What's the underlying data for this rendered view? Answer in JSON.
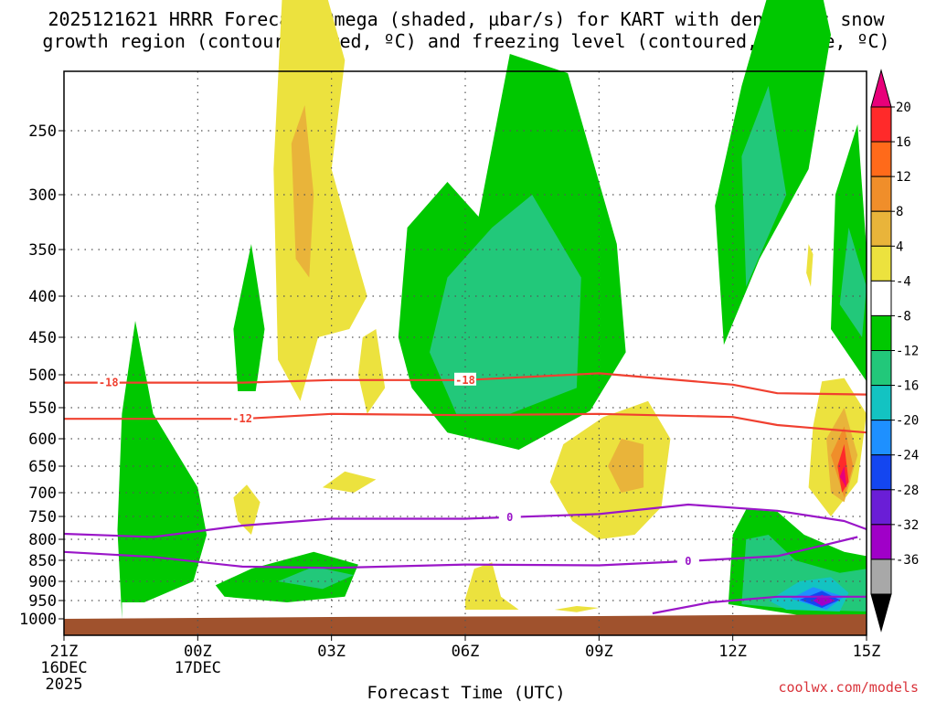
{
  "chart_data": {
    "type": "time-height contour",
    "title_line1": "2025121621 HRRR Forecast Omega (shaded, µbar/s) for KART with dendritic snow",
    "title_line2": "growth region (contoured, red, ºC) and freezing level (contoured, purple, ºC)",
    "xlabel": "Forecast Time (UTC)",
    "ylabel": "",
    "y_axis": {
      "units": "hPa",
      "range": [
        1000,
        200
      ],
      "ticks": [
        250,
        300,
        350,
        400,
        450,
        500,
        550,
        600,
        650,
        700,
        750,
        800,
        850,
        900,
        950,
        1000
      ]
    },
    "x_axis": {
      "range_hours": [
        0,
        18
      ],
      "ticks": [
        {
          "hour": 0,
          "label": "21Z",
          "sub1": "16DEC",
          "sub2": "2025"
        },
        {
          "hour": 3,
          "label": "00Z",
          "sub1": "17DEC",
          "sub2": ""
        },
        {
          "hour": 6,
          "label": "03Z",
          "sub1": "",
          "sub2": ""
        },
        {
          "hour": 9,
          "label": "06Z",
          "sub1": "",
          "sub2": ""
        },
        {
          "hour": 12,
          "label": "09Z",
          "sub1": "",
          "sub2": ""
        },
        {
          "hour": 15,
          "label": "12Z",
          "sub1": "",
          "sub2": ""
        },
        {
          "hour": 18,
          "label": "15Z",
          "sub1": "",
          "sub2": ""
        }
      ]
    },
    "colorbar": {
      "labels": [
        "20",
        "16",
        "12",
        "8",
        "4",
        "-4",
        "-8",
        "-12",
        "-16",
        "-20",
        "-24",
        "-28",
        "-32",
        "-36"
      ],
      "colors": [
        "#e8007a",
        "#ff2a2a",
        "#ff6a1a",
        "#f08e2a",
        "#e9b43a",
        "#ece23e",
        "#ffffff",
        "#00c800",
        "#22c87a",
        "#13c3c2",
        "#1e90ff",
        "#1446f0",
        "#6a1ed6",
        "#a000c8",
        "#a8a8a8",
        "#000000"
      ]
    },
    "dgz_contours": [
      {
        "label": "-18",
        "points": [
          [
            0,
            512
          ],
          [
            4,
            512
          ],
          [
            6,
            508
          ],
          [
            9,
            508
          ],
          [
            12,
            498
          ],
          [
            15,
            515
          ],
          [
            16,
            528
          ],
          [
            18,
            530
          ]
        ]
      },
      {
        "label": "-12",
        "points": [
          [
            0,
            568
          ],
          [
            4,
            568
          ],
          [
            6,
            560
          ],
          [
            9,
            562
          ],
          [
            12,
            560
          ],
          [
            15,
            565
          ],
          [
            16,
            578
          ],
          [
            18,
            590
          ]
        ]
      }
    ],
    "freezing_level_contours": [
      {
        "label": "0",
        "points": [
          [
            0,
            788
          ],
          [
            2,
            795
          ],
          [
            4,
            770
          ],
          [
            6,
            755
          ],
          [
            9,
            755
          ],
          [
            12,
            745
          ],
          [
            14,
            725
          ],
          [
            16,
            738
          ],
          [
            17.5,
            760
          ],
          [
            18,
            778
          ]
        ]
      },
      {
        "label": "0",
        "points": [
          [
            0,
            830
          ],
          [
            2,
            842
          ],
          [
            4,
            865
          ],
          [
            6,
            868
          ],
          [
            9,
            860
          ],
          [
            12,
            862
          ],
          [
            14,
            852
          ],
          [
            16,
            840
          ],
          [
            17,
            815
          ],
          [
            17.8,
            795
          ]
        ]
      },
      {
        "label": "",
        "points": [
          [
            13.2,
            985
          ],
          [
            14.5,
            955
          ],
          [
            16,
            940
          ],
          [
            18,
            940
          ]
        ]
      }
    ],
    "omega_regions": [
      {
        "level": "-4",
        "pts": [
          [
            1.3,
            1000
          ],
          [
            1.2,
            780
          ],
          [
            1.3,
            560
          ],
          [
            1.6,
            430
          ],
          [
            2.0,
            560
          ],
          [
            3.0,
            690
          ],
          [
            3.2,
            790
          ],
          [
            2.9,
            900
          ],
          [
            1.8,
            955
          ],
          [
            1.3,
            955
          ]
        ]
      },
      {
        "level": "-4",
        "pts": [
          [
            3.9,
            525
          ],
          [
            3.8,
            440
          ],
          [
            4.2,
            345
          ],
          [
            4.5,
            440
          ],
          [
            4.3,
            525
          ]
        ]
      },
      {
        "level": "-4",
        "pts": [
          [
            3.4,
            910
          ],
          [
            4.2,
            870
          ],
          [
            5.6,
            830
          ],
          [
            6.6,
            860
          ],
          [
            6.3,
            940
          ],
          [
            5.0,
            955
          ],
          [
            3.6,
            940
          ]
        ]
      },
      {
        "level": "-4",
        "pts": [
          [
            7.5,
            450
          ],
          [
            7.7,
            330
          ],
          [
            8.6,
            290
          ],
          [
            9.3,
            320
          ],
          [
            10.0,
            190
          ],
          [
            11.3,
            205
          ],
          [
            12.4,
            345
          ],
          [
            12.6,
            470
          ],
          [
            11.8,
            555
          ],
          [
            10.2,
            620
          ],
          [
            8.6,
            590
          ],
          [
            7.8,
            520
          ]
        ]
      },
      {
        "level": "-4",
        "pts": [
          [
            14.8,
            460
          ],
          [
            14.6,
            310
          ],
          [
            15.2,
            215
          ],
          [
            15.9,
            130
          ],
          [
            16.8,
            110
          ],
          [
            17.2,
            175
          ],
          [
            16.7,
            280
          ],
          [
            15.6,
            360
          ]
        ]
      },
      {
        "level": "-4",
        "pts": [
          [
            17.2,
            440
          ],
          [
            17.3,
            300
          ],
          [
            17.8,
            245
          ],
          [
            18.0,
            350
          ],
          [
            18.0,
            510
          ]
        ]
      },
      {
        "level": "-4",
        "pts": [
          [
            14.9,
            960
          ],
          [
            15.0,
            790
          ],
          [
            15.3,
            735
          ],
          [
            16.0,
            740
          ],
          [
            16.6,
            790
          ],
          [
            17.5,
            830
          ],
          [
            18.0,
            840
          ],
          [
            18.0,
            990
          ],
          [
            16.5,
            990
          ]
        ]
      },
      {
        "level": "-8",
        "pts": [
          [
            8.2,
            470
          ],
          [
            8.6,
            380
          ],
          [
            9.6,
            330
          ],
          [
            10.5,
            300
          ],
          [
            11.6,
            380
          ],
          [
            11.5,
            520
          ],
          [
            10.0,
            560
          ],
          [
            8.8,
            560
          ]
        ]
      },
      {
        "level": "-8",
        "pts": [
          [
            15.3,
            390
          ],
          [
            15.2,
            270
          ],
          [
            15.8,
            215
          ],
          [
            16.2,
            300
          ]
        ]
      },
      {
        "level": "-8",
        "pts": [
          [
            17.4,
            410
          ],
          [
            17.6,
            330
          ],
          [
            18.0,
            390
          ],
          [
            17.9,
            450
          ]
        ]
      },
      {
        "level": "-8",
        "pts": [
          [
            4.8,
            900
          ],
          [
            5.6,
            865
          ],
          [
            6.5,
            885
          ],
          [
            5.8,
            920
          ]
        ]
      },
      {
        "level": "-8",
        "pts": [
          [
            15.2,
            960
          ],
          [
            15.3,
            800
          ],
          [
            15.8,
            790
          ],
          [
            16.4,
            850
          ],
          [
            17.4,
            880
          ],
          [
            18.0,
            870
          ],
          [
            18.0,
            980
          ],
          [
            16.5,
            975
          ]
        ]
      },
      {
        "level": "-12",
        "pts": [
          [
            15.8,
            950
          ],
          [
            16.5,
            900
          ],
          [
            17.2,
            890
          ],
          [
            17.6,
            930
          ],
          [
            17.4,
            980
          ],
          [
            16.2,
            975
          ]
        ]
      },
      {
        "level": "-16",
        "pts": [
          [
            16.3,
            945
          ],
          [
            16.8,
            915
          ],
          [
            17.5,
            940
          ],
          [
            17.1,
            975
          ]
        ]
      },
      {
        "level": "-20",
        "pts": [
          [
            16.5,
            948
          ],
          [
            17.0,
            925
          ],
          [
            17.4,
            948
          ],
          [
            17.0,
            970
          ]
        ]
      },
      {
        "level": "-28",
        "pts": [
          [
            16.8,
            950
          ],
          [
            17.0,
            935
          ],
          [
            17.3,
            950
          ],
          [
            17.0,
            965
          ]
        ]
      },
      {
        "level": "4",
        "pts": [
          [
            4.8,
            480
          ],
          [
            4.7,
            280
          ],
          [
            4.9,
            140
          ],
          [
            5.7,
            120
          ],
          [
            6.3,
            195
          ],
          [
            6.0,
            280
          ],
          [
            6.5,
            350
          ],
          [
            6.8,
            400
          ],
          [
            6.4,
            440
          ],
          [
            5.7,
            450
          ],
          [
            5.3,
            540
          ]
        ]
      },
      {
        "level": "4",
        "pts": [
          [
            6.7,
            450
          ],
          [
            7.0,
            440
          ],
          [
            7.2,
            520
          ],
          [
            6.8,
            560
          ],
          [
            6.6,
            500
          ]
        ]
      },
      {
        "level": "4",
        "pts": [
          [
            3.8,
            710
          ],
          [
            4.1,
            685
          ],
          [
            4.4,
            720
          ],
          [
            4.2,
            790
          ],
          [
            3.9,
            760
          ]
        ]
      },
      {
        "level": "4",
        "pts": [
          [
            5.8,
            690
          ],
          [
            6.3,
            660
          ],
          [
            7.0,
            675
          ],
          [
            6.5,
            700
          ]
        ]
      },
      {
        "level": "4",
        "pts": [
          [
            10.9,
            680
          ],
          [
            11.2,
            610
          ],
          [
            12.1,
            565
          ],
          [
            13.1,
            540
          ],
          [
            13.6,
            600
          ],
          [
            13.4,
            730
          ],
          [
            12.8,
            790
          ],
          [
            12.0,
            800
          ],
          [
            11.4,
            760
          ]
        ]
      },
      {
        "level": "4",
        "pts": [
          [
            17.0,
            510
          ],
          [
            17.5,
            505
          ],
          [
            18.0,
            560
          ],
          [
            17.8,
            680
          ],
          [
            17.2,
            750
          ],
          [
            16.7,
            690
          ],
          [
            16.8,
            580
          ]
        ]
      },
      {
        "level": "4",
        "pts": [
          [
            9.0,
            945
          ],
          [
            9.2,
            870
          ],
          [
            9.6,
            855
          ],
          [
            9.8,
            940
          ],
          [
            10.2,
            975
          ],
          [
            9.0,
            975
          ]
        ]
      },
      {
        "level": "4",
        "pts": [
          [
            11.0,
            975
          ],
          [
            11.5,
            965
          ],
          [
            12.0,
            970
          ],
          [
            11.5,
            982
          ]
        ]
      },
      {
        "level": "4",
        "pts": [
          [
            16.7,
            345
          ],
          [
            16.8,
            355
          ],
          [
            16.75,
            390
          ],
          [
            16.65,
            375
          ]
        ]
      },
      {
        "level": "8",
        "pts": [
          [
            5.2,
            360
          ],
          [
            5.1,
            260
          ],
          [
            5.4,
            230
          ],
          [
            5.6,
            300
          ],
          [
            5.5,
            380
          ]
        ]
      },
      {
        "level": "8",
        "pts": [
          [
            12.2,
            650
          ],
          [
            12.5,
            600
          ],
          [
            13.0,
            610
          ],
          [
            13.0,
            690
          ],
          [
            12.5,
            700
          ]
        ]
      },
      {
        "level": "8",
        "pts": [
          [
            17.1,
            600
          ],
          [
            17.5,
            550
          ],
          [
            17.8,
            630
          ],
          [
            17.5,
            720
          ],
          [
            17.2,
            700
          ]
        ]
      },
      {
        "level": "12",
        "pts": [
          [
            17.2,
            630
          ],
          [
            17.5,
            580
          ],
          [
            17.7,
            650
          ],
          [
            17.5,
            710
          ]
        ]
      },
      {
        "level": "20",
        "pts": [
          [
            17.35,
            650
          ],
          [
            17.5,
            610
          ],
          [
            17.6,
            680
          ],
          [
            17.45,
            700
          ]
        ]
      },
      {
        "level": "20+",
        "pts": [
          [
            17.4,
            670
          ],
          [
            17.5,
            650
          ],
          [
            17.55,
            690
          ]
        ]
      }
    ]
  },
  "credit": "coolwx.com/models"
}
